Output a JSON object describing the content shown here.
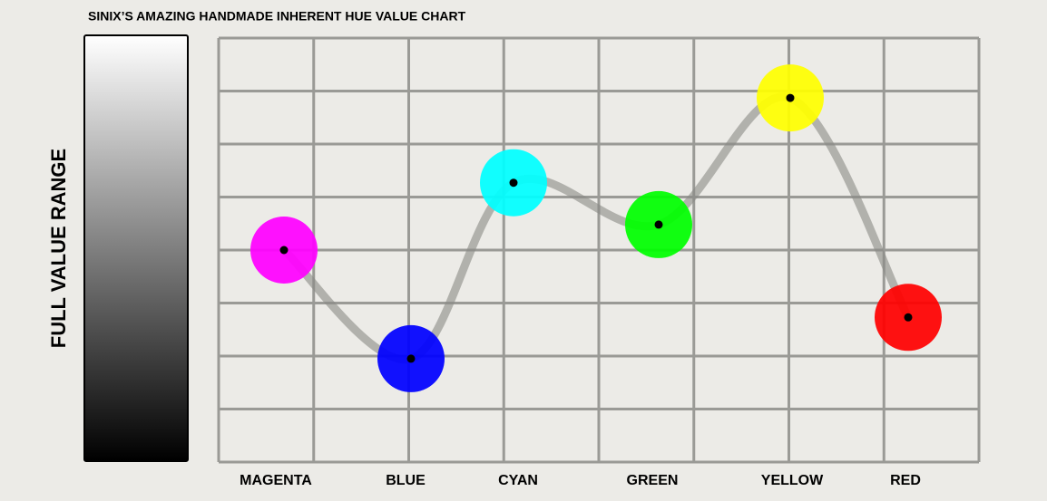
{
  "chart_data": {
    "type": "line",
    "title": "SINIX’S AMAZING HANDMADE INHERENT HUE VALUE CHART",
    "y_label": "FULL VALUE RANGE",
    "categories": [
      "MAGENTA",
      "BLUE",
      "CYAN",
      "GREEN",
      "YELLOW",
      "RED"
    ],
    "values": [
      4.0,
      1.95,
      5.27,
      4.48,
      6.87,
      2.73
    ],
    "point_colors": [
      "#ff00ff",
      "#0000ff",
      "#00ffff",
      "#00ff00",
      "#ffff00",
      "#ff0000"
    ],
    "line_color": "#8a8a86",
    "ylim": [
      0,
      8
    ]
  }
}
